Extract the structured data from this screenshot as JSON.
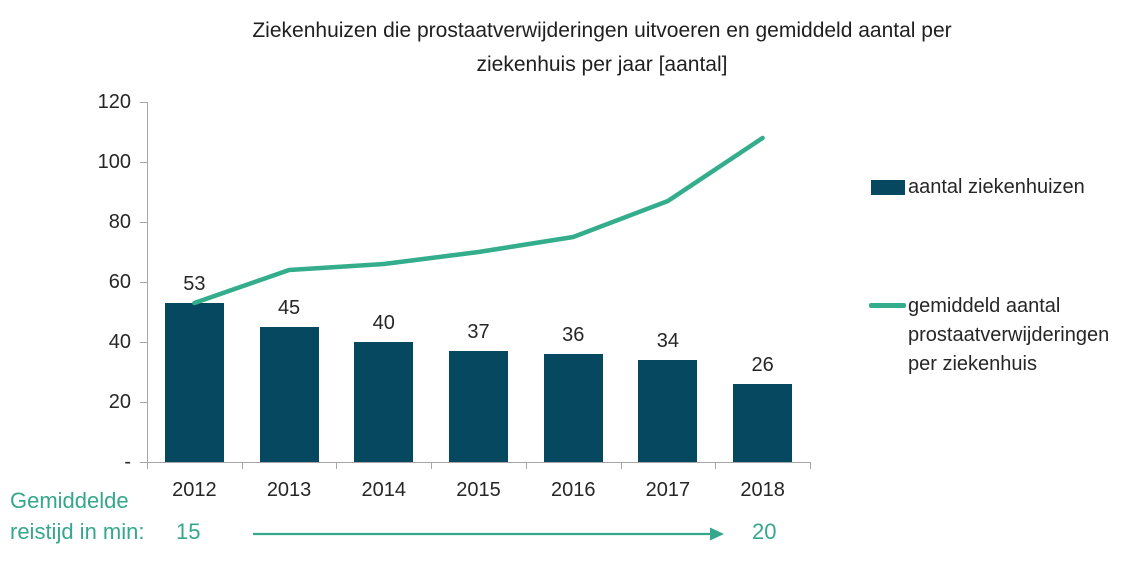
{
  "title": "Ziekenhuizen die prostaatverwijderingen uitvoeren en gemiddeld aantal per ziekenhuis per jaar [aantal]",
  "colors": {
    "bar": "#074861",
    "line": "#33ad8b",
    "teal_text": "#35a78d",
    "axis": "#a6a6a6",
    "text": "#262626"
  },
  "legend": {
    "bar_label": "aantal ziekenhuizen",
    "line_label": "gemiddeld aantal prostaatverwijderingen per ziekenhuis"
  },
  "travel_time": {
    "label": "Gemiddelde reistijd in min:",
    "start": "15",
    "end": "20"
  },
  "chart_data": {
    "type": "bar",
    "categories": [
      "2012",
      "2013",
      "2014",
      "2015",
      "2016",
      "2017",
      "2018"
    ],
    "series": [
      {
        "name": "aantal ziekenhuizen",
        "type": "bar",
        "values": [
          53,
          45,
          40,
          37,
          36,
          34,
          26
        ]
      },
      {
        "name": "gemiddeld aantal prostaatverwijderingen per ziekenhuis",
        "type": "line",
        "values": [
          53,
          64,
          66,
          70,
          75,
          87,
          108
        ]
      }
    ],
    "title": "Ziekenhuizen die prostaatverwijderingen uitvoeren en gemiddeld aantal per ziekenhuis per jaar [aantal]",
    "xlabel": "",
    "ylabel": "",
    "ylim": [
      0,
      120
    ],
    "ytick_values": [
      0,
      20,
      40,
      60,
      80,
      100,
      120
    ],
    "ytick_labels": [
      "-",
      "20",
      "40",
      "60",
      "80",
      "100",
      "120"
    ],
    "bar_value_labels_shown": true,
    "grid": false,
    "legend_position": "right",
    "annotation": {
      "label": "Gemiddelde reistijd in min:",
      "start_value": 15,
      "end_value": 20
    }
  }
}
